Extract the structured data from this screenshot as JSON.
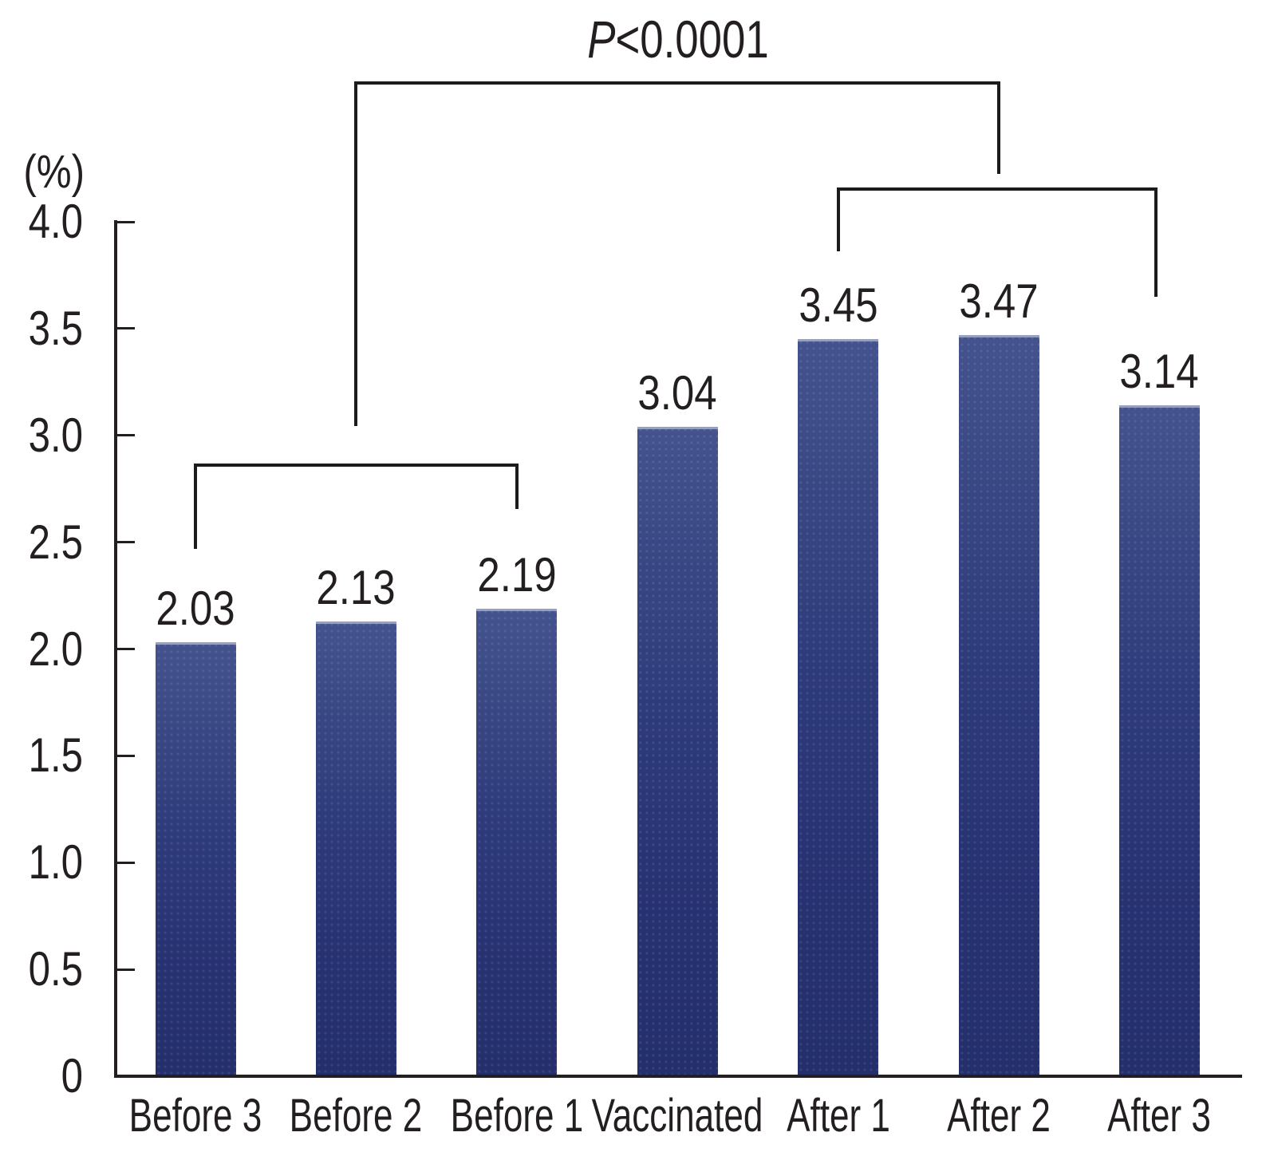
{
  "figure": {
    "background": "#ffffff",
    "text_color": "#231f20",
    "line_color": "#1c1a1b"
  },
  "chart_data": {
    "type": "bar",
    "title": "",
    "xlabel": "",
    "ylabel": "(%)",
    "categories": [
      "Before 3",
      "Before 2",
      "Before 1",
      "Vaccinated",
      "After 1",
      "After 2",
      "After 3"
    ],
    "values": [
      2.03,
      2.13,
      2.19,
      3.04,
      3.45,
      3.47,
      3.14
    ],
    "value_labels": [
      "2.03",
      "2.13",
      "2.19",
      "3.04",
      "3.45",
      "3.47",
      "3.14"
    ],
    "ylim": [
      0,
      4.0
    ],
    "yticks": [
      {
        "value": 0,
        "label": "0"
      },
      {
        "value": 0.5,
        "label": "0.5"
      },
      {
        "value": 1.0,
        "label": "1.0"
      },
      {
        "value": 1.5,
        "label": "1.5"
      },
      {
        "value": 2.0,
        "label": "2.0"
      },
      {
        "value": 2.5,
        "label": "2.5"
      },
      {
        "value": 3.0,
        "label": "3.0"
      },
      {
        "value": 3.5,
        "label": "3.5"
      },
      {
        "value": 4.0,
        "label": "4.0"
      }
    ],
    "grid": false,
    "legend": null,
    "bar_color_top": "#44538e",
    "bar_color_bottom": "#242f6c",
    "annotations": {
      "p_value": {
        "prefix": "P",
        "comparison": "<0.0001",
        "full_label": "P<0.0001"
      },
      "brackets": [
        {
          "id": "before-group",
          "spans": [
            "Before 3",
            "Before 1"
          ]
        },
        {
          "id": "after-group",
          "spans": [
            "After 1",
            "After 3"
          ]
        },
        {
          "id": "main",
          "spans": [
            "before-group",
            "after-group"
          ],
          "label": "P<0.0001"
        }
      ]
    }
  }
}
